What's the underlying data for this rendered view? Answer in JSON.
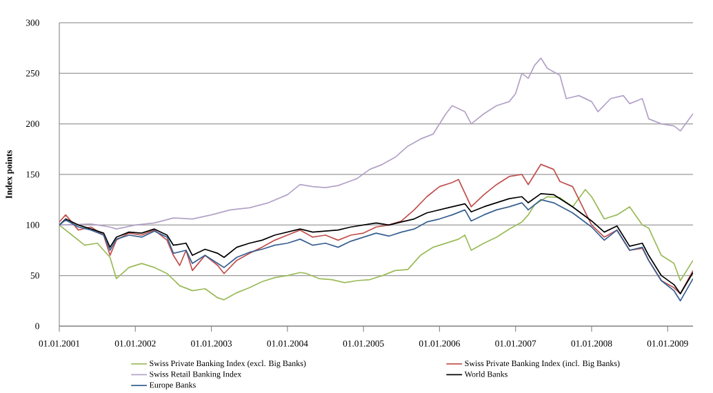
{
  "chart_data": {
    "type": "line",
    "ylabel": "Index points",
    "grid": "y",
    "legend": "bottom",
    "ylim": [
      0,
      300
    ],
    "yticks": [
      0,
      50,
      100,
      150,
      200,
      250,
      300
    ],
    "xlim": [
      "2001-01-01",
      "2009-05-01"
    ],
    "xticks": [
      {
        "value": "2001-01-01",
        "label": "01.01.2001"
      },
      {
        "value": "2002-01-01",
        "label": "01.01.2002"
      },
      {
        "value": "2003-01-01",
        "label": "01.01.2003"
      },
      {
        "value": "2004-01-01",
        "label": "01.01.2004"
      },
      {
        "value": "2005-01-01",
        "label": "01.01.2005"
      },
      {
        "value": "2006-01-01",
        "label": "01.01.2006"
      },
      {
        "value": "2007-01-01",
        "label": "01.01.2007"
      },
      {
        "value": "2008-01-01",
        "label": "01.01.2008"
      },
      {
        "value": "2009-01-01",
        "label": "01.01.2009"
      }
    ],
    "series": [
      {
        "name": "Swiss Private Banking Index (excl. Big Banks)",
        "color": "#9bbb59",
        "x": [
          "2001-01",
          "2001-03",
          "2001-05",
          "2001-07",
          "2001-09",
          "2001-10",
          "2001-12",
          "2002-02",
          "2002-04",
          "2002-06",
          "2002-08",
          "2002-10",
          "2002-12",
          "2003-02",
          "2003-03",
          "2003-05",
          "2003-07",
          "2003-09",
          "2003-11",
          "2004-01",
          "2004-03",
          "2004-04",
          "2004-06",
          "2004-08",
          "2004-10",
          "2004-12",
          "2005-02",
          "2005-04",
          "2005-06",
          "2005-08",
          "2005-10",
          "2005-12",
          "2006-02",
          "2006-04",
          "2006-05",
          "2006-06",
          "2006-08",
          "2006-10",
          "2006-12",
          "2007-02",
          "2007-03",
          "2007-04",
          "2007-06",
          "2007-08",
          "2007-10",
          "2007-12",
          "2008-01",
          "2008-03",
          "2008-05",
          "2008-07",
          "2008-09",
          "2008-10",
          "2008-12",
          "2009-02",
          "2009-03",
          "2009-05"
        ],
        "values": [
          100,
          90,
          80,
          82,
          68,
          47,
          58,
          62,
          58,
          52,
          40,
          35,
          37,
          28,
          26,
          33,
          38,
          44,
          48,
          50,
          53,
          52,
          47,
          46,
          43,
          45,
          46,
          50,
          55,
          56,
          70,
          78,
          82,
          86,
          90,
          75,
          82,
          88,
          96,
          103,
          110,
          120,
          128,
          127,
          118,
          135,
          128,
          106,
          110,
          118,
          100,
          97,
          70,
          62,
          45,
          65
        ]
      },
      {
        "name": "Swiss Private Banking Index (incl. Big Banks)",
        "color": "#c0504d",
        "x": [
          "2001-01",
          "2001-02",
          "2001-04",
          "2001-06",
          "2001-08",
          "2001-09",
          "2001-10",
          "2001-12",
          "2002-02",
          "2002-04",
          "2002-06",
          "2002-07",
          "2002-08",
          "2002-09",
          "2002-10",
          "2002-12",
          "2003-02",
          "2003-03",
          "2003-05",
          "2003-07",
          "2003-09",
          "2003-11",
          "2004-01",
          "2004-03",
          "2004-05",
          "2004-07",
          "2004-09",
          "2004-11",
          "2005-01",
          "2005-03",
          "2005-05",
          "2005-07",
          "2005-09",
          "2005-11",
          "2006-01",
          "2006-03",
          "2006-04",
          "2006-06",
          "2006-08",
          "2006-10",
          "2006-12",
          "2007-02",
          "2007-03",
          "2007-05",
          "2007-07",
          "2007-08",
          "2007-10",
          "2008-01",
          "2008-03",
          "2008-05",
          "2008-07",
          "2008-09",
          "2008-10",
          "2008-12",
          "2009-02",
          "2009-03",
          "2009-05"
        ],
        "values": [
          103,
          110,
          95,
          98,
          90,
          70,
          85,
          92,
          90,
          95,
          85,
          70,
          60,
          75,
          55,
          70,
          60,
          52,
          65,
          72,
          78,
          85,
          90,
          95,
          88,
          90,
          85,
          90,
          92,
          98,
          100,
          104,
          115,
          128,
          138,
          142,
          145,
          118,
          130,
          140,
          148,
          150,
          140,
          160,
          155,
          143,
          138,
          100,
          88,
          95,
          75,
          77,
          65,
          45,
          38,
          32,
          55
        ]
      },
      {
        "name": "Swiss Retail Banking Index",
        "color": "#b3a2c7",
        "x": [
          "2001-01",
          "2001-06",
          "2001-09",
          "2001-10",
          "2002-01",
          "2002-04",
          "2002-07",
          "2002-10",
          "2003-01",
          "2003-04",
          "2003-07",
          "2003-10",
          "2004-01",
          "2004-03",
          "2004-05",
          "2004-07",
          "2004-09",
          "2004-12",
          "2005-02",
          "2005-04",
          "2005-06",
          "2005-08",
          "2005-10",
          "2005-12",
          "2006-02",
          "2006-03",
          "2006-05",
          "2006-06",
          "2006-08",
          "2006-10",
          "2006-12",
          "2007-01",
          "2007-02",
          "2007-03",
          "2007-04",
          "2007-05",
          "2007-06",
          "2007-08",
          "2007-09",
          "2007-11",
          "2008-01",
          "2008-02",
          "2008-04",
          "2008-06",
          "2008-07",
          "2008-09",
          "2008-10",
          "2008-12",
          "2009-02",
          "2009-03",
          "2009-05"
        ],
        "values": [
          100,
          101,
          98,
          96,
          100,
          102,
          107,
          106,
          110,
          115,
          117,
          122,
          130,
          140,
          138,
          137,
          139,
          146,
          155,
          160,
          167,
          178,
          185,
          190,
          210,
          218,
          212,
          200,
          210,
          218,
          222,
          230,
          250,
          245,
          258,
          265,
          255,
          248,
          225,
          228,
          222,
          212,
          225,
          228,
          220,
          225,
          205,
          200,
          198,
          193,
          210
        ]
      },
      {
        "name": "World Banks",
        "color": "#000000",
        "x": [
          "2001-01",
          "2001-02",
          "2001-04",
          "2001-06",
          "2001-08",
          "2001-09",
          "2001-10",
          "2001-12",
          "2002-02",
          "2002-04",
          "2002-06",
          "2002-07",
          "2002-09",
          "2002-10",
          "2002-12",
          "2003-02",
          "2003-03",
          "2003-05",
          "2003-07",
          "2003-09",
          "2003-11",
          "2004-01",
          "2004-03",
          "2004-05",
          "2004-07",
          "2004-09",
          "2004-11",
          "2005-01",
          "2005-03",
          "2005-05",
          "2005-07",
          "2005-09",
          "2005-11",
          "2006-01",
          "2006-03",
          "2006-05",
          "2006-06",
          "2006-08",
          "2006-10",
          "2006-12",
          "2007-02",
          "2007-03",
          "2007-05",
          "2007-07",
          "2007-10",
          "2008-01",
          "2008-03",
          "2008-05",
          "2008-07",
          "2008-09",
          "2008-10",
          "2008-12",
          "2009-02",
          "2009-03",
          "2009-05"
        ],
        "values": [
          100,
          106,
          100,
          96,
          92,
          78,
          88,
          93,
          92,
          96,
          90,
          80,
          82,
          70,
          76,
          72,
          68,
          78,
          82,
          85,
          90,
          93,
          96,
          93,
          94,
          95,
          98,
          100,
          102,
          100,
          103,
          106,
          112,
          115,
          118,
          121,
          113,
          118,
          122,
          126,
          128,
          122,
          131,
          130,
          118,
          104,
          93,
          99,
          79,
          82,
          70,
          50,
          41,
          32,
          53
        ]
      },
      {
        "name": "Europe Banks",
        "color": "#376092",
        "x": [
          "2001-01",
          "2001-02",
          "2001-04",
          "2001-06",
          "2001-08",
          "2001-09",
          "2001-10",
          "2001-12",
          "2002-02",
          "2002-04",
          "2002-06",
          "2002-07",
          "2002-09",
          "2002-10",
          "2002-12",
          "2003-02",
          "2003-03",
          "2003-05",
          "2003-07",
          "2003-09",
          "2003-11",
          "2004-01",
          "2004-03",
          "2004-05",
          "2004-07",
          "2004-09",
          "2004-11",
          "2005-01",
          "2005-03",
          "2005-05",
          "2005-07",
          "2005-09",
          "2005-11",
          "2006-01",
          "2006-03",
          "2006-05",
          "2006-06",
          "2006-08",
          "2006-10",
          "2006-12",
          "2007-02",
          "2007-03",
          "2007-05",
          "2007-07",
          "2007-10",
          "2008-01",
          "2008-03",
          "2008-05",
          "2008-07",
          "2008-09",
          "2008-10",
          "2008-12",
          "2009-02",
          "2009-03",
          "2009-05"
        ],
        "values": [
          100,
          105,
          98,
          95,
          90,
          75,
          86,
          90,
          88,
          94,
          88,
          72,
          75,
          62,
          70,
          62,
          58,
          68,
          73,
          76,
          80,
          82,
          86,
          80,
          82,
          78,
          84,
          88,
          92,
          89,
          93,
          96,
          103,
          106,
          110,
          115,
          104,
          110,
          115,
          118,
          122,
          115,
          125,
          122,
          112,
          98,
          85,
          95,
          75,
          78,
          65,
          45,
          35,
          25,
          47
        ]
      }
    ]
  }
}
